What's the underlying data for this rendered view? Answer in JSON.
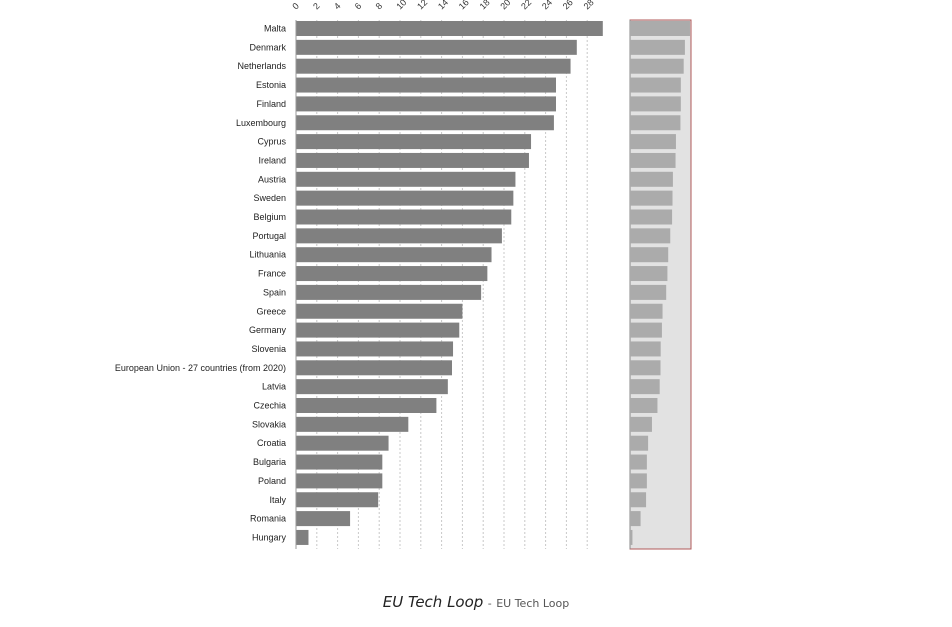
{
  "chart_data": {
    "type": "bar",
    "orientation": "horizontal",
    "categories": [
      "Malta",
      "Denmark",
      "Netherlands",
      "Estonia",
      "Finland",
      "Luxembourg",
      "Cyprus",
      "Ireland",
      "Austria",
      "Sweden",
      "Belgium",
      "Portugal",
      "Lithuania",
      "France",
      "Spain",
      "Greece",
      "Germany",
      "Slovenia",
      "European Union - 27 countries (from 2020)",
      "Latvia",
      "Czechia",
      "Slovakia",
      "Croatia",
      "Bulgaria",
      "Poland",
      "Italy",
      "Romania",
      "Hungary"
    ],
    "values": [
      29.5,
      27.0,
      26.4,
      25.0,
      25.0,
      24.8,
      22.6,
      22.4,
      21.1,
      20.9,
      20.7,
      19.8,
      18.8,
      18.4,
      17.8,
      16.0,
      15.7,
      15.1,
      15.0,
      14.6,
      13.5,
      10.8,
      8.9,
      8.3,
      8.3,
      7.9,
      5.2,
      1.2
    ],
    "xticks": [
      "0",
      "2",
      "4",
      "6",
      "8",
      "10",
      "12",
      "14",
      "16",
      "18",
      "20",
      "22",
      "24",
      "26",
      "28"
    ],
    "xlim": [
      0,
      30
    ],
    "grid": "vertical dashed",
    "bar_color": "#808080",
    "minimap": {
      "background": "#e2e2e2",
      "bar_color": "#ababab",
      "border_color": "#b05a5a"
    }
  },
  "caption": {
    "title": "EU Tech Loop",
    "separator": "-",
    "source": "EU Tech Loop"
  }
}
